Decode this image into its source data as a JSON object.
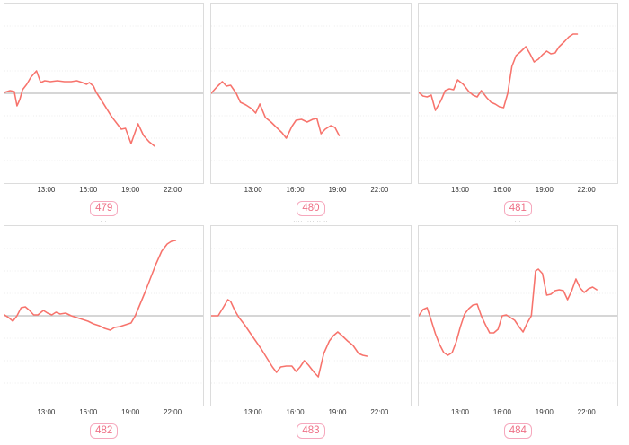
{
  "theme": {
    "line_color": "#f7736c",
    "baseline_color": "#bdbdbd",
    "grid_color": "#ececec",
    "plot_border_color": "#dcdcdc",
    "tick_text_color": "#333333",
    "badge_text_color": "#ee7187",
    "badge_border_color": "#f6a8bd",
    "title_text_color": "#8a8a8a"
  },
  "chart_data": [
    {
      "type": "line",
      "badge": "479",
      "title_fragment": "· · ·",
      "x_ticks": [
        "13:00",
        "16:00",
        "19:00",
        "22:00"
      ],
      "x_tick_hours": [
        13,
        16,
        19,
        22
      ],
      "x_range_hours": [
        10.0,
        24.3
      ],
      "ylim": [
        -1,
        1
      ],
      "baseline": 0,
      "y_axis_labels": "none",
      "grid": "horizontal-dotted",
      "legend": "none",
      "series": [
        {
          "name": "series-1",
          "x": [
            10.0,
            10.4,
            10.7,
            10.9,
            11.1,
            11.3,
            11.6,
            11.9,
            12.3,
            12.6,
            12.9,
            13.3,
            13.8,
            14.3,
            14.8,
            15.2,
            15.6,
            15.9,
            16.1,
            16.4,
            16.6,
            17.1,
            17.7,
            18.0,
            18.4,
            18.7,
            19.1,
            19.6,
            20.0,
            20.4,
            20.8
          ],
          "y": [
            0.01,
            0.03,
            0.02,
            -0.14,
            -0.07,
            0.04,
            0.1,
            0.18,
            0.25,
            0.12,
            0.14,
            0.13,
            0.14,
            0.13,
            0.13,
            0.14,
            0.12,
            0.1,
            0.12,
            0.08,
            0.01,
            -0.11,
            -0.26,
            -0.32,
            -0.4,
            -0.39,
            -0.56,
            -0.34,
            -0.47,
            -0.54,
            -0.59
          ]
        }
      ]
    },
    {
      "type": "line",
      "badge": "480",
      "title_fragment": "···· /·· / ··",
      "x_ticks": [
        "13:00",
        "16:00",
        "19:00",
        "22:00"
      ],
      "x_tick_hours": [
        13,
        16,
        19,
        22
      ],
      "x_range_hours": [
        10.0,
        24.3
      ],
      "ylim": [
        -1,
        1
      ],
      "baseline": 0,
      "y_axis_labels": "none",
      "grid": "horizontal-dotted",
      "legend": "none",
      "series": [
        {
          "name": "series-1",
          "x": [
            10.0,
            10.4,
            10.8,
            11.1,
            11.4,
            11.8,
            12.1,
            12.5,
            12.9,
            13.2,
            13.5,
            13.9,
            14.3,
            14.7,
            15.1,
            15.4,
            15.8,
            16.1,
            16.5,
            16.9,
            17.3,
            17.6,
            17.9,
            18.2,
            18.6,
            18.9,
            19.2
          ],
          "y": [
            0.0,
            0.07,
            0.13,
            0.08,
            0.09,
            0.0,
            -0.1,
            -0.13,
            -0.17,
            -0.22,
            -0.12,
            -0.27,
            -0.32,
            -0.38,
            -0.44,
            -0.5,
            -0.37,
            -0.3,
            -0.29,
            -0.32,
            -0.29,
            -0.28,
            -0.45,
            -0.4,
            -0.36,
            -0.38,
            -0.47
          ]
        }
      ]
    },
    {
      "type": "line",
      "badge": "481",
      "title_fragment": "· ·",
      "x_ticks": [
        "13:00",
        "16:00",
        "19:00",
        "22:00"
      ],
      "x_tick_hours": [
        13,
        16,
        19,
        22
      ],
      "x_range_hours": [
        10.0,
        24.3
      ],
      "ylim": [
        -1,
        1
      ],
      "baseline": 0,
      "y_axis_labels": "none",
      "grid": "horizontal-dotted",
      "legend": "none",
      "series": [
        {
          "name": "series-1",
          "x": [
            10.0,
            10.3,
            10.6,
            10.9,
            11.2,
            11.6,
            11.9,
            12.2,
            12.5,
            12.8,
            13.2,
            13.6,
            13.9,
            14.2,
            14.5,
            14.9,
            15.2,
            15.5,
            15.8,
            16.1,
            16.4,
            16.7,
            17.0,
            17.3,
            17.7,
            18.0,
            18.3,
            18.6,
            18.9,
            19.2,
            19.5,
            19.8,
            20.1,
            20.5,
            20.8,
            21.1,
            21.4
          ],
          "y": [
            0.01,
            -0.03,
            -0.04,
            -0.02,
            -0.19,
            -0.08,
            0.03,
            0.05,
            0.04,
            0.15,
            0.1,
            0.02,
            -0.02,
            -0.04,
            0.03,
            -0.05,
            -0.1,
            -0.12,
            -0.15,
            -0.16,
            0.0,
            0.3,
            0.42,
            0.46,
            0.52,
            0.44,
            0.35,
            0.38,
            0.43,
            0.47,
            0.44,
            0.45,
            0.52,
            0.58,
            0.63,
            0.66,
            0.66
          ]
        }
      ]
    },
    {
      "type": "line",
      "badge": "482",
      "title_fragment": "· ·",
      "x_ticks": [
        "13:00",
        "16:00",
        "19:00",
        "22:00"
      ],
      "x_tick_hours": [
        13,
        16,
        19,
        22
      ],
      "x_range_hours": [
        10.0,
        24.3
      ],
      "ylim": [
        -1,
        1
      ],
      "baseline": 0,
      "y_axis_labels": "none",
      "grid": "horizontal-dotted",
      "legend": "none",
      "series": [
        {
          "name": "series-1",
          "x": [
            10.0,
            10.3,
            10.6,
            10.9,
            11.2,
            11.5,
            11.8,
            12.1,
            12.4,
            12.8,
            13.1,
            13.4,
            13.7,
            14.0,
            14.4,
            14.8,
            15.2,
            15.6,
            16.0,
            16.4,
            16.8,
            17.2,
            17.6,
            17.9,
            18.3,
            18.7,
            19.1,
            19.4,
            19.8,
            20.1,
            20.5,
            20.9,
            21.3,
            21.7,
            22.0,
            22.3
          ],
          "y": [
            0.01,
            -0.02,
            -0.06,
            0.0,
            0.09,
            0.1,
            0.06,
            0.01,
            0.01,
            0.06,
            0.03,
            0.01,
            0.04,
            0.02,
            0.03,
            0.0,
            -0.02,
            -0.04,
            -0.06,
            -0.09,
            -0.11,
            -0.14,
            -0.16,
            -0.13,
            -0.12,
            -0.1,
            -0.08,
            0.0,
            0.15,
            0.26,
            0.42,
            0.58,
            0.72,
            0.8,
            0.83,
            0.84
          ]
        }
      ]
    },
    {
      "type": "line",
      "badge": "483",
      "title_fragment": "···· ···· ·· ··",
      "x_ticks": [
        "13:00",
        "16:00",
        "19:00",
        "22:00"
      ],
      "x_tick_hours": [
        13,
        16,
        19,
        22
      ],
      "x_range_hours": [
        10.0,
        24.3
      ],
      "ylim": [
        -1,
        1
      ],
      "baseline": 0,
      "y_axis_labels": "none",
      "grid": "horizontal-dotted",
      "legend": "none",
      "series": [
        {
          "name": "series-1",
          "x": [
            10.0,
            10.5,
            10.9,
            11.2,
            11.4,
            11.7,
            12.0,
            12.4,
            12.8,
            13.2,
            13.6,
            14.0,
            14.4,
            14.7,
            15.0,
            15.4,
            15.8,
            16.1,
            16.4,
            16.7,
            17.0,
            17.4,
            17.7,
            18.1,
            18.5,
            18.8,
            19.1,
            19.4,
            19.8,
            20.2,
            20.6,
            20.9,
            21.2
          ],
          "y": [
            0.0,
            0.0,
            0.1,
            0.18,
            0.16,
            0.06,
            -0.02,
            -0.1,
            -0.19,
            -0.28,
            -0.37,
            -0.47,
            -0.57,
            -0.63,
            -0.57,
            -0.56,
            -0.56,
            -0.62,
            -0.57,
            -0.5,
            -0.55,
            -0.63,
            -0.68,
            -0.42,
            -0.28,
            -0.22,
            -0.18,
            -0.22,
            -0.28,
            -0.33,
            -0.42,
            -0.44,
            -0.45
          ]
        }
      ]
    },
    {
      "type": "line",
      "badge": "484",
      "title_fragment": "· ·",
      "x_ticks": [
        "13:00",
        "16:00",
        "19:00",
        "22:00"
      ],
      "x_tick_hours": [
        13,
        16,
        19,
        22
      ],
      "x_range_hours": [
        10.0,
        24.3
      ],
      "ylim": [
        -1,
        1
      ],
      "baseline": 0,
      "y_axis_labels": "none",
      "grid": "horizontal-dotted",
      "legend": "none",
      "series": [
        {
          "name": "series-1",
          "x": [
            10.0,
            10.3,
            10.6,
            10.9,
            11.2,
            11.5,
            11.8,
            12.1,
            12.4,
            12.7,
            13.0,
            13.3,
            13.6,
            13.9,
            14.2,
            14.5,
            14.8,
            15.1,
            15.4,
            15.7,
            16.0,
            16.3,
            16.6,
            16.9,
            17.2,
            17.5,
            17.8,
            18.1,
            18.4,
            18.6,
            18.9,
            19.2,
            19.5,
            19.8,
            20.1,
            20.4,
            20.7,
            21.0,
            21.3,
            21.6,
            21.9,
            22.2,
            22.5,
            22.8
          ],
          "y": [
            0.0,
            0.07,
            0.09,
            -0.05,
            -0.2,
            -0.32,
            -0.41,
            -0.44,
            -0.41,
            -0.29,
            -0.12,
            0.02,
            0.08,
            0.12,
            0.13,
            0.0,
            -0.1,
            -0.19,
            -0.19,
            -0.15,
            0.0,
            0.01,
            -0.02,
            -0.05,
            -0.12,
            -0.18,
            -0.08,
            0.0,
            0.5,
            0.52,
            0.47,
            0.23,
            0.24,
            0.28,
            0.29,
            0.28,
            0.18,
            0.28,
            0.41,
            0.31,
            0.26,
            0.3,
            0.32,
            0.29
          ]
        }
      ]
    }
  ]
}
